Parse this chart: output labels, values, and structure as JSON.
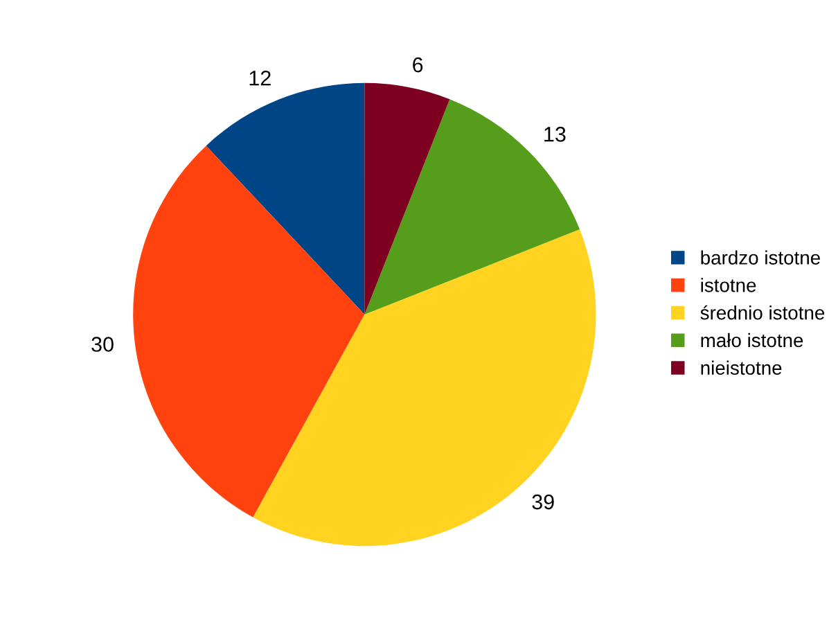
{
  "chart_data": {
    "type": "pie",
    "categories": [
      "bardzo istotne",
      "istotne",
      "średnio istotne",
      "mało istotne",
      "nieistotne"
    ],
    "values": [
      12,
      30,
      39,
      13,
      6
    ],
    "colors": [
      "#004586",
      "#ff420e",
      "#ffd320",
      "#579d1c",
      "#7e0021"
    ],
    "data_labels": true,
    "legend": "right"
  }
}
